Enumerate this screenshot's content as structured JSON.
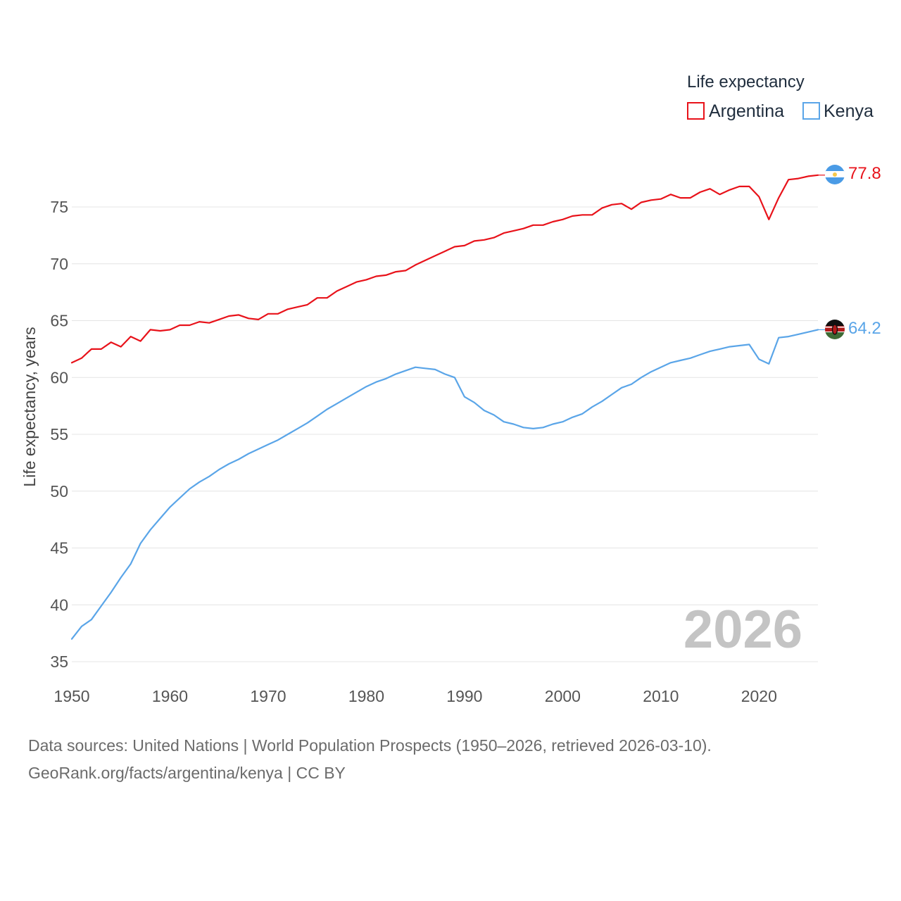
{
  "chart_data": {
    "type": "line",
    "title": "",
    "xlabel": "",
    "ylabel": "Life expectancy, years",
    "xlim": [
      1950,
      2026
    ],
    "ylim": [
      35,
      80
    ],
    "xticks": [
      1950,
      1960,
      1970,
      1980,
      1990,
      2000,
      2010,
      2020
    ],
    "yticks": [
      35,
      40,
      45,
      50,
      55,
      60,
      65,
      70,
      75
    ],
    "grid": true,
    "legend": {
      "title": "Life expectancy",
      "placement": "top-right"
    },
    "watermark_year": "2026",
    "x": [
      1950,
      1951,
      1952,
      1953,
      1954,
      1955,
      1956,
      1957,
      1958,
      1959,
      1960,
      1961,
      1962,
      1963,
      1964,
      1965,
      1966,
      1967,
      1968,
      1969,
      1970,
      1971,
      1972,
      1973,
      1974,
      1975,
      1976,
      1977,
      1978,
      1979,
      1980,
      1981,
      1982,
      1983,
      1984,
      1985,
      1986,
      1987,
      1988,
      1989,
      1990,
      1991,
      1992,
      1993,
      1994,
      1995,
      1996,
      1997,
      1998,
      1999,
      2000,
      2001,
      2002,
      2003,
      2004,
      2005,
      2006,
      2007,
      2008,
      2009,
      2010,
      2011,
      2012,
      2013,
      2014,
      2015,
      2016,
      2017,
      2018,
      2019,
      2020,
      2021,
      2022,
      2023,
      2024,
      2025,
      2026
    ],
    "series": [
      {
        "name": "Argentina",
        "color": "#e8121a",
        "end_label": "77.8",
        "flag": "argentina-flag",
        "values": [
          61.3,
          61.7,
          62.5,
          62.5,
          63.1,
          62.7,
          63.6,
          63.2,
          64.2,
          64.1,
          64.2,
          64.6,
          64.6,
          64.9,
          64.8,
          65.1,
          65.4,
          65.5,
          65.2,
          65.1,
          65.6,
          65.6,
          66.0,
          66.2,
          66.4,
          67.0,
          67.0,
          67.6,
          68.0,
          68.4,
          68.6,
          68.9,
          69.0,
          69.3,
          69.4,
          69.9,
          70.3,
          70.7,
          71.1,
          71.5,
          71.6,
          72.0,
          72.1,
          72.3,
          72.7,
          72.9,
          73.1,
          73.4,
          73.4,
          73.7,
          73.9,
          74.2,
          74.3,
          74.3,
          74.9,
          75.2,
          75.3,
          74.8,
          75.4,
          75.6,
          75.7,
          76.1,
          75.8,
          75.8,
          76.3,
          76.6,
          76.1,
          76.5,
          76.8,
          76.8,
          75.9,
          73.9,
          75.8,
          77.4,
          77.5,
          77.7,
          77.8
        ]
      },
      {
        "name": "Kenya",
        "color": "#5aa5e8",
        "end_label": "64.2",
        "flag": "kenya-flag",
        "values": [
          37.0,
          38.1,
          38.7,
          39.9,
          41.1,
          42.4,
          43.6,
          45.4,
          46.6,
          47.6,
          48.6,
          49.4,
          50.2,
          50.8,
          51.3,
          51.9,
          52.4,
          52.8,
          53.3,
          53.7,
          54.1,
          54.5,
          55.0,
          55.5,
          56.0,
          56.6,
          57.2,
          57.7,
          58.2,
          58.7,
          59.2,
          59.6,
          59.9,
          60.3,
          60.6,
          60.9,
          60.8,
          60.7,
          60.3,
          60.0,
          58.3,
          57.8,
          57.1,
          56.7,
          56.1,
          55.9,
          55.6,
          55.5,
          55.6,
          55.9,
          56.1,
          56.5,
          56.8,
          57.4,
          57.9,
          58.5,
          59.1,
          59.4,
          60.0,
          60.5,
          60.9,
          61.3,
          61.5,
          61.7,
          62.0,
          62.3,
          62.5,
          62.7,
          62.8,
          62.9,
          61.6,
          61.2,
          63.5,
          63.6,
          63.8,
          64.0,
          64.2
        ]
      }
    ]
  },
  "footer": {
    "line1": "Data sources: United Nations | World Population Prospects (1950–2026, retrieved 2026-03-10).",
    "line2": "GeoRank.org/facts/argentina/kenya | CC BY"
  }
}
